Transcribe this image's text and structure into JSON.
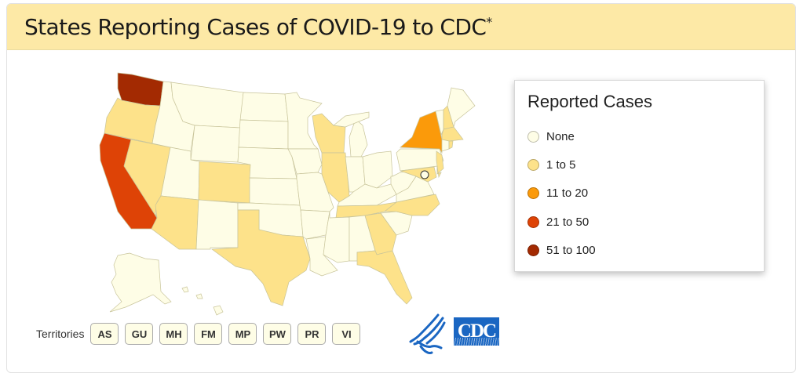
{
  "header": {
    "title": "States Reporting Cases of COVID-19 to CDC",
    "footnote_marker": "*"
  },
  "legend": {
    "title": "Reported Cases",
    "items": [
      {
        "label": "None",
        "color": "#fefde6"
      },
      {
        "label": "1 to 5",
        "color": "#fde28a"
      },
      {
        "label": "11 to 20",
        "color": "#fb9a0a"
      },
      {
        "label": "21 to 50",
        "color": "#de4306"
      },
      {
        "label": "51 to 100",
        "color": "#a32a02"
      }
    ]
  },
  "states": {
    "WA": 4,
    "OR": 1,
    "CA": 3,
    "NV": 1,
    "ID": 0,
    "MT": 0,
    "WY": 0,
    "UT": 0,
    "CO": 1,
    "AZ": 1,
    "NM": 0,
    "ND": 0,
    "SD": 0,
    "NE": 0,
    "KS": 0,
    "OK": 0,
    "TX": 1,
    "MN": 0,
    "IA": 0,
    "MO": 0,
    "AR": 0,
    "LA": 0,
    "WI": 1,
    "IL": 1,
    "MI": 0,
    "IN": 0,
    "OH": 0,
    "KY": 0,
    "TN": 1,
    "MS": 0,
    "AL": 0,
    "GA": 1,
    "FL": 1,
    "SC": 0,
    "NC": 1,
    "VA": 0,
    "WV": 0,
    "PA": 0,
    "NY": 2,
    "VT": 0,
    "NH": 1,
    "ME": 0,
    "MA": 1,
    "CT": 0,
    "RI": 1,
    "NJ": 1,
    "DE": 1,
    "MD": 1,
    "DC": 0,
    "AK": 0,
    "HI": 0
  },
  "territories": {
    "label": "Territories",
    "items": [
      "AS",
      "GU",
      "MH",
      "FM",
      "MP",
      "PW",
      "PR",
      "VI"
    ]
  },
  "logos": {
    "cdc": "CDC"
  }
}
